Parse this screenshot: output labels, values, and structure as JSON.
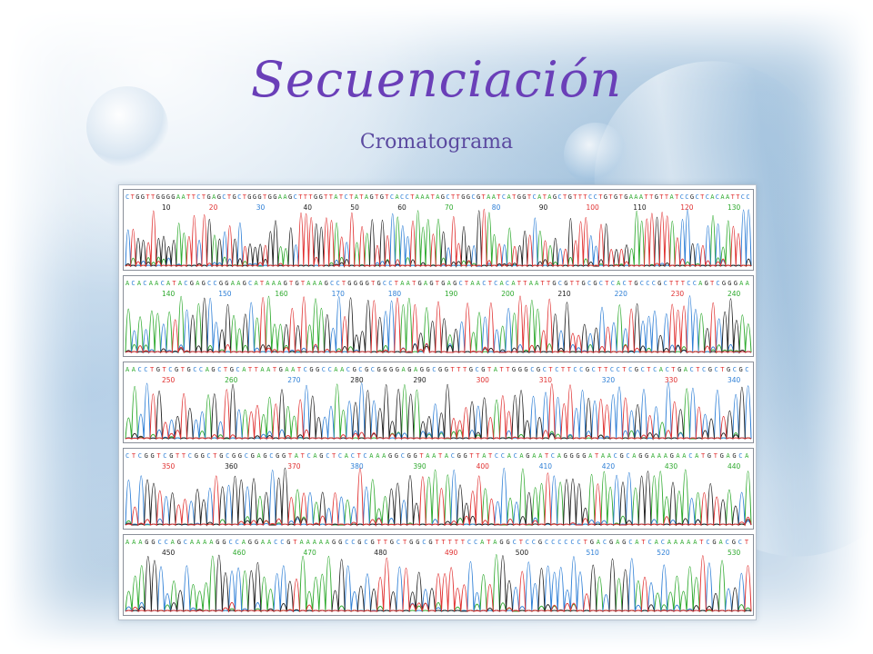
{
  "slide": {
    "title": "Secuenciación",
    "subtitle": "Cromatograma",
    "colors": {
      "title": "#6a3fb8",
      "subtitle": "#5b4aa0"
    }
  },
  "chromatogram": {
    "base_colors": {
      "A": "#2faa2f",
      "C": "#2e7fd6",
      "G": "#222222",
      "T": "#e03030"
    },
    "rows": [
      {
        "sequence": "CTGGTTGGGGAATTCTGAGCTGCTGGGTGGAAGCTTTGGTTATCTATAGTGTCACCTAAATAGCTTGGCGTAATCATGGTCATAGCTGTTTCCTGTGTGAAATTGTTATCCGCTCACAATTCC",
        "ticks": [
          {
            "label": "10",
            "color": "#222222"
          },
          {
            "label": "20",
            "color": "#e03030"
          },
          {
            "label": "30",
            "color": "#2e7fd6"
          },
          {
            "label": "40",
            "color": "#222222"
          },
          {
            "label": "50",
            "color": "#222222"
          },
          {
            "label": "60",
            "color": "#222222"
          },
          {
            "label": "70",
            "color": "#2faa2f"
          },
          {
            "label": "80",
            "color": "#2e7fd6"
          },
          {
            "label": "90",
            "color": "#222222"
          },
          {
            "label": "100",
            "color": "#e03030"
          },
          {
            "label": "110",
            "color": "#222222"
          },
          {
            "label": "120",
            "color": "#e03030"
          },
          {
            "label": "130",
            "color": "#2faa2f"
          }
        ]
      },
      {
        "sequence": "ACACAACATACGAGCCGGAAGCATAAAGTGTAAAGCCTGGGGTGCCTAATGAGTGAGCTAACTCACATTAATTGCGTTGCGCTCACTGCCCGCTTTCCAGTCGGGAA",
        "ticks": [
          {
            "label": "140",
            "color": "#2faa2f"
          },
          {
            "label": "150",
            "color": "#2e7fd6"
          },
          {
            "label": "160",
            "color": "#2faa2f"
          },
          {
            "label": "170",
            "color": "#2e7fd6"
          },
          {
            "label": "180",
            "color": "#2e7fd6"
          },
          {
            "label": "190",
            "color": "#2faa2f"
          },
          {
            "label": "200",
            "color": "#2faa2f"
          },
          {
            "label": "210",
            "color": "#222222"
          },
          {
            "label": "220",
            "color": "#2e7fd6"
          },
          {
            "label": "230",
            "color": "#e03030"
          },
          {
            "label": "240",
            "color": "#2faa2f"
          }
        ]
      },
      {
        "sequence": "AACCTGTCGTGCCAGCTGCATTAATGAATCGGCCAACGCGCGGGGAGAGGCGGTTTGCGTATTGGGCGCTCTTCCGCTTCCTCGCTCACTGACTCGCTGCGC",
        "ticks": [
          {
            "label": "250",
            "color": "#e03030"
          },
          {
            "label": "260",
            "color": "#2faa2f"
          },
          {
            "label": "270",
            "color": "#2e7fd6"
          },
          {
            "label": "280",
            "color": "#222222"
          },
          {
            "label": "290",
            "color": "#222222"
          },
          {
            "label": "300",
            "color": "#e03030"
          },
          {
            "label": "310",
            "color": "#e03030"
          },
          {
            "label": "320",
            "color": "#2e7fd6"
          },
          {
            "label": "330",
            "color": "#e03030"
          },
          {
            "label": "340",
            "color": "#2e7fd6"
          }
        ]
      },
      {
        "sequence": "CTCGGTCGTTCGGCTGCGGCGAGCGGTATCAGCTCACTCAAAGGCGGTAATACGGTTATCCACAGAATCAGGGGATAACGCAGGAAAGAACATGTGAGCA",
        "ticks": [
          {
            "label": "350",
            "color": "#e03030"
          },
          {
            "label": "360",
            "color": "#222222"
          },
          {
            "label": "370",
            "color": "#e03030"
          },
          {
            "label": "380",
            "color": "#2e7fd6"
          },
          {
            "label": "390",
            "color": "#2faa2f"
          },
          {
            "label": "400",
            "color": "#e03030"
          },
          {
            "label": "410",
            "color": "#2e7fd6"
          },
          {
            "label": "420",
            "color": "#2e7fd6"
          },
          {
            "label": "430",
            "color": "#2faa2f"
          },
          {
            "label": "440",
            "color": "#2faa2f"
          }
        ]
      },
      {
        "sequence": "AAAGGCCAGCAAAAGGCCAGGAACCGTAAAAAGGCCGCGTTGCTGGCGTTTTTCCATAGGCTCCGCCCCCCTGACGAGCATCACAAAAATCGACGCT",
        "ticks": [
          {
            "label": "450",
            "color": "#222222"
          },
          {
            "label": "460",
            "color": "#2faa2f"
          },
          {
            "label": "470",
            "color": "#2faa2f"
          },
          {
            "label": "480",
            "color": "#222222"
          },
          {
            "label": "490",
            "color": "#e03030"
          },
          {
            "label": "500",
            "color": "#222222"
          },
          {
            "label": "510",
            "color": "#2e7fd6"
          },
          {
            "label": "520",
            "color": "#2e7fd6"
          },
          {
            "label": "530",
            "color": "#2faa2f"
          }
        ]
      }
    ]
  }
}
